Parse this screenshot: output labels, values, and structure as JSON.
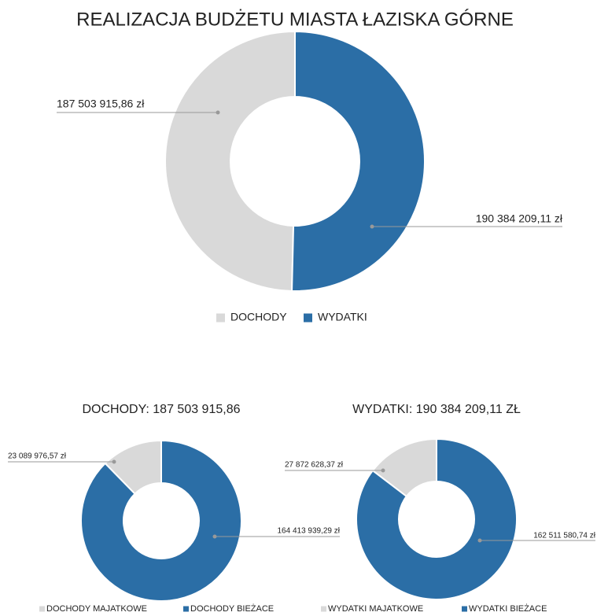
{
  "chart_data": [
    {
      "type": "donut",
      "title": "REALIZACJA BUDŻETU MIASTA ŁAZISKA GÓRNE",
      "categories": [
        "DOCHODY",
        "WYDATKI"
      ],
      "values": [
        187503915.86,
        190384209.11
      ],
      "value_labels": [
        "187 503 915,86 zł",
        "190 384 209,11 zł"
      ],
      "colors": [
        "#d9d9d9",
        "#2b6ea6"
      ]
    },
    {
      "type": "donut",
      "title": "DOCHODY: 187 503 915,86",
      "categories": [
        "DOCHODY MAJATKOWE",
        "DOCHODY BIEŻACE"
      ],
      "values": [
        23089976.57,
        164413939.29
      ],
      "value_labels": [
        "23 089 976,57 zł",
        "164 413 939,29 zł"
      ],
      "colors": [
        "#d9d9d9",
        "#2b6ea6"
      ]
    },
    {
      "type": "donut",
      "title": "WYDATKI: 190 384 209,11 ZŁ",
      "categories": [
        "WYDATKI MAJATKOWE",
        "WYDATKI BIEŻACE"
      ],
      "values": [
        27872628.37,
        162511580.74
      ],
      "value_labels": [
        "27 872 628,37 zł",
        "162 511 580,74 zł"
      ],
      "colors": [
        "#d9d9d9",
        "#2b6ea6"
      ]
    }
  ]
}
